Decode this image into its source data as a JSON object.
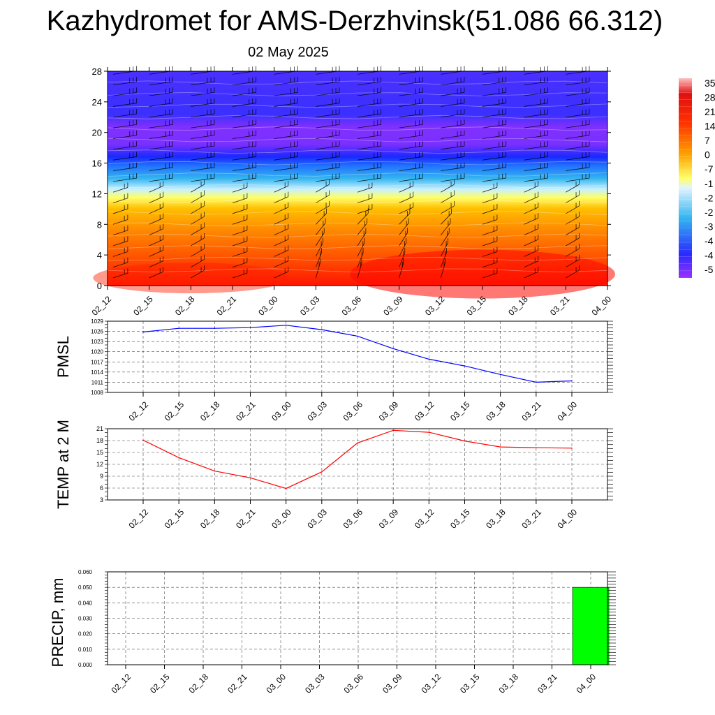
{
  "title": "Kazhydromet for AMS-Derzhvinsk(51.086 66.312)",
  "subtitle": "02 May 2025",
  "time_labels": [
    "02_12",
    "02_15",
    "02_18",
    "02_21",
    "03_00",
    "03_03",
    "03_06",
    "03_09",
    "03_12",
    "03_15",
    "03_18",
    "03_21",
    "04_00"
  ],
  "chart_data": [
    {
      "type": "heatmap",
      "name": "temperature-height section",
      "x": [
        "02_12",
        "02_15",
        "02_18",
        "02_21",
        "03_00",
        "03_03",
        "03_06",
        "03_09",
        "03_12",
        "03_15",
        "03_18",
        "03_21",
        "04_00"
      ],
      "ylim": [
        0,
        28
      ],
      "yticks": [
        0,
        4,
        8,
        12,
        16,
        20,
        24,
        28
      ],
      "colorbar_labels": [
        "35",
        "28",
        "21",
        "14",
        "7",
        "0",
        "-7",
        "-1",
        "-2",
        "-2",
        "-3",
        "-4",
        "-4",
        "-5"
      ],
      "colors": {
        "warm": "#ff1a00",
        "orange": "#ffa000",
        "yellow": "#ffff66",
        "cyan": "#33b5f0",
        "blue": "#2a2aff",
        "violet": "#9a30ff"
      },
      "wind_barbs": true
    },
    {
      "type": "line",
      "ylabel": "PMSL",
      "x": [
        "02_12",
        "02_15",
        "02_18",
        "02_21",
        "03_00",
        "03_03",
        "03_06",
        "03_09",
        "03_12",
        "03_15",
        "03_18",
        "03_21",
        "04_00"
      ],
      "values": [
        1025.8,
        1026.9,
        1026.9,
        1027.1,
        1027.8,
        1026.5,
        1024.6,
        1020.9,
        1017.8,
        1015.8,
        1013.3,
        1011.0,
        1011.4
      ],
      "ylim": [
        1008,
        1029
      ],
      "yticks": [
        1008,
        1011,
        1014,
        1017,
        1020,
        1023,
        1026,
        1029
      ],
      "color": "#0000ff",
      "grid": true
    },
    {
      "type": "line",
      "ylabel": "TEMP at 2 M",
      "x": [
        "02_12",
        "02_15",
        "02_18",
        "02_21",
        "03_00",
        "03_03",
        "03_06",
        "03_09",
        "03_12",
        "03_15",
        "03_18",
        "03_21",
        "04_00"
      ],
      "values": [
        18.1,
        13.7,
        10.3,
        8.6,
        5.9,
        10.1,
        17.4,
        20.6,
        20.1,
        17.9,
        16.4,
        16.2,
        16.1
      ],
      "ylim": [
        3,
        21
      ],
      "yticks": [
        3,
        6,
        9,
        12,
        15,
        18,
        21
      ],
      "color": "#ff0000",
      "grid": true
    },
    {
      "type": "bar",
      "ylabel": "PRECIP, mm",
      "categories": [
        "02_12",
        "02_15",
        "02_18",
        "02_21",
        "03_00",
        "03_03",
        "03_06",
        "03_09",
        "03_12",
        "03_15",
        "03_18",
        "03_21",
        "04_00"
      ],
      "values": [
        0,
        0,
        0,
        0,
        0,
        0,
        0,
        0,
        0,
        0,
        0,
        0,
        0.05
      ],
      "ylim": [
        0,
        0.06
      ],
      "yticks": [
        "0.000",
        "0.010",
        "0.020",
        "0.030",
        "0.040",
        "0.050",
        "0.060"
      ],
      "color": "#00ff00",
      "grid": true
    }
  ]
}
